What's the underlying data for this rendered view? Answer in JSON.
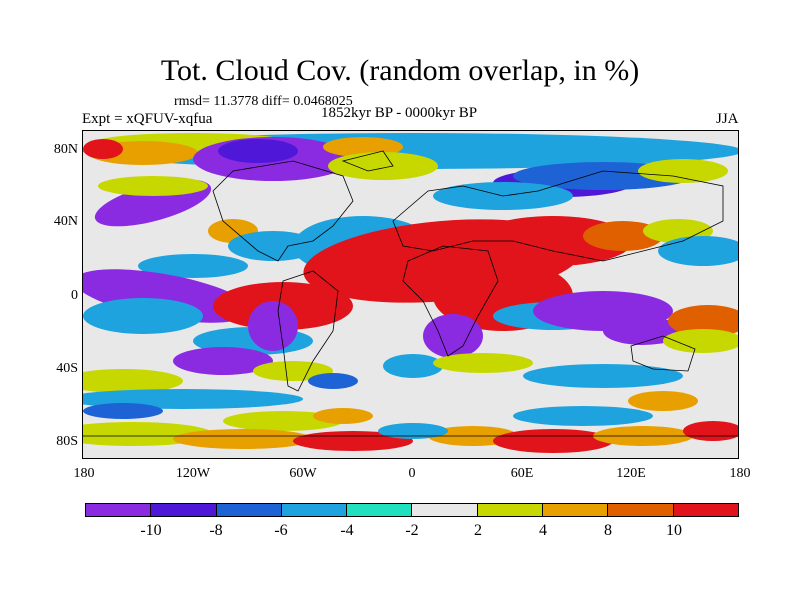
{
  "title": "Tot. Cloud Cov. (random overlap, in %)",
  "stats": "rmsd= 11.3778 diff= 0.0468025",
  "expt": "Expt = xQFUV-xqfua",
  "period": "1852kyr BP - 0000kyr BP",
  "season": "JJA",
  "y_labels": [
    "80N",
    "40N",
    "0",
    "40S",
    "80S"
  ],
  "x_labels": [
    "180",
    "120W",
    "60W",
    "0",
    "60E",
    "120E",
    "180"
  ],
  "colorbar": {
    "labels": [
      "-10",
      "-8",
      "-6",
      "-4",
      "-2",
      "2",
      "4",
      "8",
      "10"
    ],
    "colors": [
      "#8a2be2",
      "#4f18d8",
      "#1e63d6",
      "#1ea3de",
      "#20e0c0",
      "#e8e8e8",
      "#c6d800",
      "#e8a000",
      "#e06000",
      "#e0141a"
    ]
  },
  "map_colors": {
    "background": "#e8e8e8",
    "violet": "#8a2be2",
    "indigo": "#4f18d8",
    "blue": "#1e63d6",
    "cyan": "#1ea3de",
    "teal": "#20e0c0",
    "yellow": "#c6d800",
    "orange": "#e8a000",
    "dark_orange": "#e06000",
    "red": "#e0141a",
    "coast": "#000000"
  }
}
